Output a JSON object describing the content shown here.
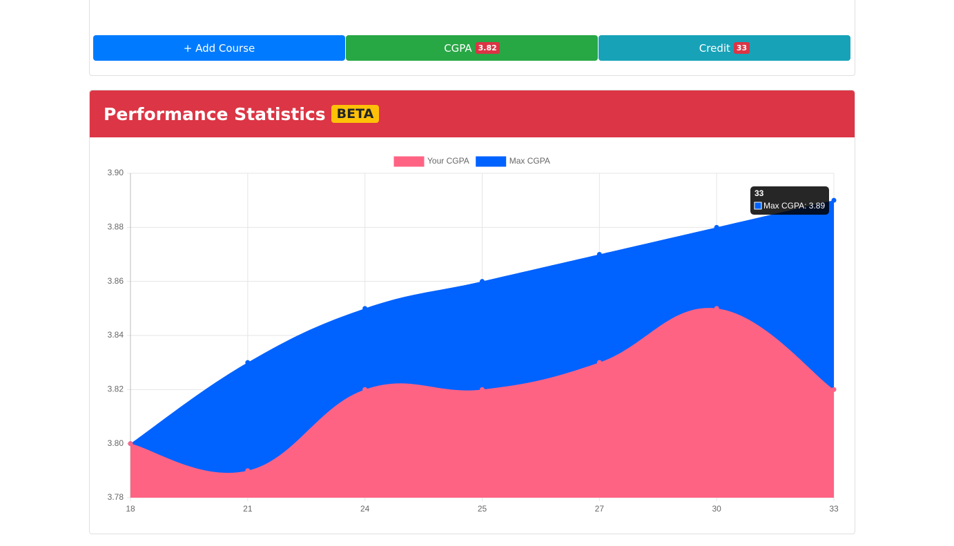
{
  "buttons": {
    "add_course": "+ Add Course",
    "cgpa": {
      "label": "CGPA",
      "badge": "3.82"
    },
    "credit": {
      "label": "Credit",
      "badge": "33"
    }
  },
  "card": {
    "title": "Performance Statistics",
    "badge": "BETA"
  },
  "chart_data": {
    "type": "area",
    "categories": [
      "18",
      "21",
      "24",
      "25",
      "27",
      "30",
      "33"
    ],
    "series": [
      {
        "name": "Your CGPA",
        "color": "#ff6384",
        "values": [
          3.8,
          3.79,
          3.82,
          3.82,
          3.83,
          3.85,
          3.82
        ]
      },
      {
        "name": "Max CGPA",
        "color": "#0062ff",
        "values": [
          3.8,
          3.83,
          3.85,
          3.86,
          3.87,
          3.88,
          3.89
        ]
      }
    ],
    "ylim": [
      3.78,
      3.9
    ],
    "yticks": [
      3.78,
      {
        "value": 3.8,
        "label": "3.80"
      },
      3.82,
      3.84,
      3.86,
      3.88,
      {
        "value": 3.9,
        "label": "3.90"
      }
    ],
    "grid": true,
    "legend": "top",
    "tooltip": {
      "title": "33",
      "text": "Max CGPA: 3.89"
    }
  }
}
